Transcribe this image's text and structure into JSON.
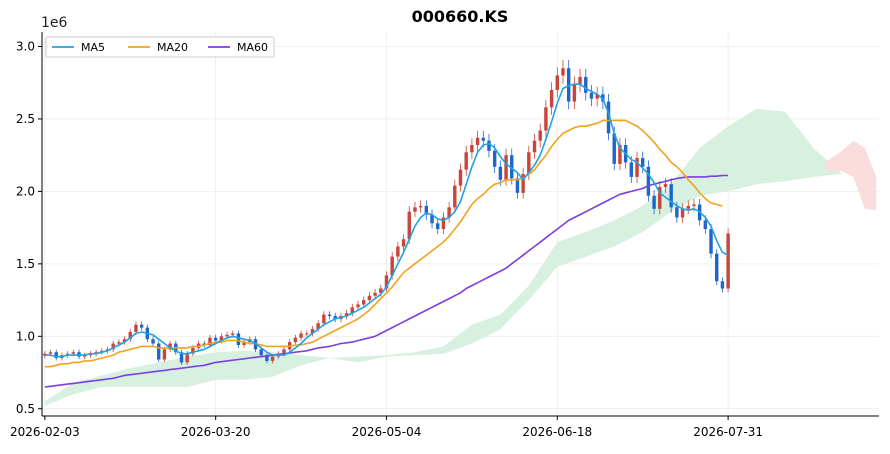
{
  "chart_data": {
    "type": "candlestick",
    "title": "000660.KS",
    "y_offset_label": "1e6",
    "y_scale_factor": 1000000,
    "ylim": [
      0.45,
      3.1
    ],
    "y_ticks": [
      0.5,
      1.0,
      1.5,
      2.0,
      2.5,
      3.0
    ],
    "y_tick_labels": [
      "0.5",
      "1.0",
      "1.5",
      "2.0",
      "2.5",
      "3.0"
    ],
    "x_tick_labels": [
      "2026-02-03",
      "2026-03-20",
      "2026-05-04",
      "2026-06-18",
      "2026-07-31"
    ],
    "x_tick_index": [
      0,
      30,
      60,
      90,
      120
    ],
    "x_range": [
      -0.5,
      146.5
    ],
    "grid": true,
    "legend_position": "top-left",
    "legend": [
      {
        "name": "MA5",
        "color": "#1fa3e6"
      },
      {
        "name": "MA20",
        "color": "#f2a21c"
      },
      {
        "name": "MA60",
        "color": "#7b3fe0"
      }
    ],
    "up_color": "#c9443a",
    "down_color": "#1f66c9",
    "cloud_bull_color": "#d8f0df",
    "cloud_bear_color": "#fbdcdc",
    "closes": [
      0.88,
      0.89,
      0.85,
      0.87,
      0.88,
      0.89,
      0.86,
      0.87,
      0.88,
      0.89,
      0.9,
      0.91,
      0.95,
      0.96,
      0.98,
      1.03,
      1.08,
      1.06,
      0.98,
      0.95,
      0.84,
      0.91,
      0.95,
      0.89,
      0.82,
      0.88,
      0.92,
      0.95,
      0.94,
      0.99,
      0.97,
      1.0,
      1.01,
      1.02,
      0.94,
      0.96,
      0.98,
      0.91,
      0.87,
      0.83,
      0.86,
      0.88,
      0.91,
      0.96,
      0.99,
      1.02,
      1.02,
      1.05,
      1.09,
      1.15,
      1.14,
      1.12,
      1.14,
      1.16,
      1.2,
      1.22,
      1.25,
      1.28,
      1.3,
      1.33,
      1.42,
      1.55,
      1.62,
      1.67,
      1.86,
      1.89,
      1.9,
      1.84,
      1.78,
      1.74,
      1.82,
      1.89,
      2.04,
      2.15,
      2.27,
      2.32,
      2.37,
      2.35,
      2.28,
      2.17,
      2.08,
      2.25,
      2.09,
      1.99,
      2.12,
      2.27,
      2.35,
      2.42,
      2.58,
      2.7,
      2.8,
      2.85,
      2.62,
      2.74,
      2.79,
      2.68,
      2.64,
      2.67,
      2.62,
      2.4,
      2.19,
      2.32,
      2.2,
      2.1,
      2.23,
      2.17,
      1.97,
      1.88,
      2.03,
      2.05,
      1.89,
      1.82,
      1.88,
      1.9,
      1.91,
      1.8,
      1.74,
      1.57,
      1.38,
      1.33,
      1.71
    ],
    "ma5": [
      0.87,
      0.87,
      0.86,
      0.86,
      0.87,
      0.87,
      0.87,
      0.87,
      0.88,
      0.88,
      0.89,
      0.9,
      0.92,
      0.94,
      0.96,
      0.99,
      1.02,
      1.03,
      1.02,
      1.01,
      0.98,
      0.95,
      0.92,
      0.9,
      0.88,
      0.88,
      0.89,
      0.9,
      0.91,
      0.93,
      0.95,
      0.97,
      0.99,
      1.0,
      0.99,
      0.98,
      0.97,
      0.95,
      0.92,
      0.89,
      0.87,
      0.87,
      0.87,
      0.89,
      0.92,
      0.95,
      0.99,
      1.02,
      1.05,
      1.08,
      1.1,
      1.12,
      1.13,
      1.14,
      1.16,
      1.18,
      1.2,
      1.23,
      1.26,
      1.29,
      1.34,
      1.42,
      1.5,
      1.58,
      1.67,
      1.76,
      1.82,
      1.85,
      1.84,
      1.81,
      1.8,
      1.82,
      1.86,
      1.93,
      2.05,
      2.17,
      2.27,
      2.32,
      2.33,
      2.3,
      2.24,
      2.19,
      2.16,
      2.13,
      2.08,
      2.13,
      2.18,
      2.25,
      2.36,
      2.48,
      2.61,
      2.71,
      2.73,
      2.74,
      2.74,
      2.71,
      2.69,
      2.67,
      2.64,
      2.54,
      2.4,
      2.3,
      2.26,
      2.22,
      2.2,
      2.16,
      2.12,
      2.06,
      1.99,
      1.96,
      1.93,
      1.9,
      1.88,
      1.87,
      1.88,
      1.86,
      1.82,
      1.76,
      1.66,
      1.58,
      1.56
    ],
    "ma20": [
      0.79,
      0.79,
      0.8,
      0.81,
      0.81,
      0.82,
      0.82,
      0.83,
      0.83,
      0.84,
      0.85,
      0.86,
      0.87,
      0.89,
      0.9,
      0.91,
      0.92,
      0.93,
      0.93,
      0.93,
      0.92,
      0.92,
      0.92,
      0.92,
      0.92,
      0.92,
      0.93,
      0.93,
      0.94,
      0.95,
      0.96,
      0.96,
      0.97,
      0.97,
      0.97,
      0.96,
      0.95,
      0.95,
      0.94,
      0.93,
      0.93,
      0.93,
      0.93,
      0.93,
      0.94,
      0.94,
      0.95,
      0.96,
      0.98,
      1.0,
      1.02,
      1.04,
      1.06,
      1.08,
      1.1,
      1.12,
      1.15,
      1.18,
      1.22,
      1.26,
      1.3,
      1.34,
      1.39,
      1.44,
      1.47,
      1.5,
      1.53,
      1.56,
      1.59,
      1.62,
      1.65,
      1.69,
      1.74,
      1.79,
      1.85,
      1.91,
      1.95,
      1.98,
      2.02,
      2.05,
      2.06,
      2.08,
      2.08,
      2.08,
      2.09,
      2.12,
      2.15,
      2.2,
      2.25,
      2.31,
      2.36,
      2.4,
      2.42,
      2.44,
      2.45,
      2.45,
      2.46,
      2.47,
      2.49,
      2.49,
      2.49,
      2.49,
      2.49,
      2.47,
      2.45,
      2.42,
      2.38,
      2.34,
      2.29,
      2.25,
      2.2,
      2.17,
      2.13,
      2.08,
      2.04,
      1.99,
      1.95,
      1.92,
      1.91,
      1.9
    ],
    "ma60": [
      0.65,
      0.655,
      0.66,
      0.665,
      0.67,
      0.675,
      0.68,
      0.685,
      0.69,
      0.695,
      0.7,
      0.705,
      0.71,
      0.72,
      0.73,
      0.735,
      0.74,
      0.745,
      0.75,
      0.755,
      0.76,
      0.765,
      0.77,
      0.775,
      0.78,
      0.785,
      0.79,
      0.795,
      0.8,
      0.81,
      0.82,
      0.825,
      0.83,
      0.835,
      0.84,
      0.845,
      0.85,
      0.855,
      0.86,
      0.865,
      0.87,
      0.875,
      0.88,
      0.885,
      0.89,
      0.895,
      0.9,
      0.91,
      0.92,
      0.925,
      0.93,
      0.94,
      0.95,
      0.955,
      0.96,
      0.97,
      0.98,
      0.99,
      1.0,
      1.02,
      1.04,
      1.06,
      1.08,
      1.1,
      1.12,
      1.14,
      1.16,
      1.18,
      1.2,
      1.22,
      1.24,
      1.26,
      1.28,
      1.3,
      1.33,
      1.35,
      1.37,
      1.39,
      1.41,
      1.43,
      1.45,
      1.47,
      1.5,
      1.53,
      1.56,
      1.59,
      1.62,
      1.65,
      1.68,
      1.71,
      1.74,
      1.77,
      1.8,
      1.82,
      1.84,
      1.86,
      1.88,
      1.9,
      1.92,
      1.94,
      1.96,
      1.98,
      1.99,
      2.0,
      2.01,
      2.02,
      2.04,
      2.05,
      2.06,
      2.07,
      2.08,
      2.09,
      2.095,
      2.1,
      2.1,
      2.1,
      2.1,
      2.105,
      2.105,
      2.11,
      2.11
    ],
    "cloud_bull": {
      "x": [
        0,
        5,
        10,
        15,
        20,
        25,
        30,
        35,
        40,
        45,
        50,
        55,
        60,
        65,
        70,
        75,
        80,
        85,
        90,
        95,
        100,
        105,
        110,
        115,
        120,
        125,
        130,
        135,
        140
      ],
      "upper": [
        0.55,
        0.68,
        0.73,
        0.78,
        0.82,
        0.86,
        0.89,
        0.9,
        0.89,
        0.87,
        0.85,
        0.86,
        0.87,
        0.89,
        0.93,
        1.08,
        1.15,
        1.35,
        1.65,
        1.72,
        1.8,
        1.9,
        2.05,
        2.3,
        2.45,
        2.57,
        2.55,
        2.3,
        2.12
      ],
      "lower": [
        0.52,
        0.6,
        0.65,
        0.65,
        0.65,
        0.65,
        0.7,
        0.7,
        0.72,
        0.8,
        0.85,
        0.82,
        0.86,
        0.87,
        0.88,
        0.95,
        1.05,
        1.25,
        1.48,
        1.55,
        1.62,
        1.72,
        1.86,
        1.97,
        2.0,
        2.05,
        2.07,
        2.1,
        2.12
      ]
    },
    "cloud_bear": {
      "x": [
        137,
        140,
        142,
        144,
        146
      ],
      "upper": [
        2.2,
        2.28,
        2.35,
        2.3,
        2.1
      ],
      "lower": [
        2.15,
        2.14,
        2.1,
        1.88,
        1.87
      ]
    }
  }
}
